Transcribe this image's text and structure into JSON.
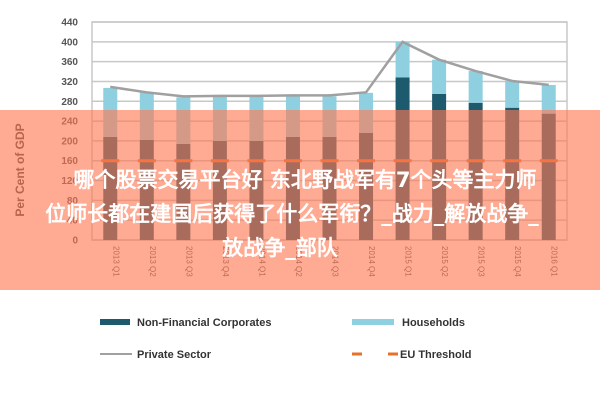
{
  "chart_data": {
    "type": "bar",
    "stacked": true,
    "title": "",
    "xlabel": "",
    "ylabel": "Per Cent of GDP",
    "ylim": [
      0,
      440
    ],
    "yticks": [
      0,
      40,
      80,
      120,
      160,
      200,
      240,
      280,
      320,
      360,
      400,
      440
    ],
    "grid": true,
    "legend_position": "bottom",
    "categories": [
      "2013 Q1",
      "2013 Q2",
      "2013 Q3",
      "2013 Q4",
      "2014 Q1",
      "2014 Q2",
      "2014 Q3",
      "2014 Q4",
      "2015 Q1",
      "2015 Q2",
      "2015 Q3",
      "2015 Q4",
      "2016 Q1"
    ],
    "series": [
      {
        "name": "Non-Financial Corporates",
        "kind": "bar",
        "color": "#1d5a6e",
        "values": [
          208,
          202,
          194,
          200,
          200,
          208,
          208,
          216,
          328,
          295,
          277,
          267,
          255
        ]
      },
      {
        "name": "Households",
        "kind": "bar",
        "color": "#8ecfe0",
        "values": [
          99,
          96,
          94,
          90,
          90,
          82,
          82,
          81,
          72,
          69,
          64,
          54,
          58
        ]
      },
      {
        "name": "Private Sector",
        "kind": "line",
        "color": "#a0a0a0",
        "values": [
          309,
          298,
          290,
          291,
          291,
          292,
          292,
          298,
          400,
          364,
          341,
          321,
          313
        ]
      },
      {
        "name": "EU Threshold",
        "kind": "dashed-line",
        "color": "#e8702a",
        "values": [
          160,
          160,
          160,
          160,
          160,
          160,
          160,
          160,
          160,
          160,
          160,
          160,
          160
        ]
      }
    ]
  },
  "legend": {
    "items": [
      {
        "label": "Non-Financial Corporates",
        "color": "#1d5a6e"
      },
      {
        "label": "Households",
        "color": "#8ecfe0"
      },
      {
        "label": "Private Sector",
        "color": "#a0a0a0"
      },
      {
        "label": "EU Threshold",
        "color": "#e8702a"
      }
    ]
  },
  "overlay": {
    "line1": "哪个股票交易平台好 东北野战军有7个头等主力师",
    "line2": "位师长都在建国后获得了什么军衔？_战力_解放战争_",
    "line3": "放战争_部队"
  }
}
